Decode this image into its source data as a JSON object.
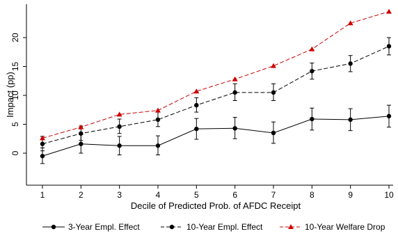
{
  "chart_data": {
    "type": "line",
    "title": "",
    "xlabel": "Decile of Predicted Prob. of AFDC Receipt",
    "ylabel": "Impact (pp)",
    "x": [
      1,
      2,
      3,
      4,
      5,
      6,
      7,
      8,
      9,
      10
    ],
    "xlim": [
      1,
      10
    ],
    "ylim": [
      -5,
      25
    ],
    "yticks": [
      0,
      5,
      10,
      15,
      20
    ],
    "grid": false,
    "legend_position": "bottom",
    "series": [
      {
        "name": "3-Year Empl. Effect",
        "color": "#000000",
        "line_style": "solid",
        "marker": "circle",
        "values": [
          -0.5,
          1.6,
          1.3,
          1.3,
          4.2,
          4.3,
          3.5,
          5.9,
          5.8,
          6.4
        ],
        "error_lower": [
          -1.8,
          0.0,
          -0.3,
          -0.3,
          2.4,
          2.5,
          1.7,
          4.0,
          3.9,
          4.5
        ],
        "error_upper": [
          0.9,
          3.2,
          2.9,
          3.0,
          6.0,
          6.2,
          5.4,
          7.8,
          7.7,
          8.3
        ]
      },
      {
        "name": "10-Year Empl. Effect",
        "color": "#000000",
        "line_style": "dashed",
        "marker": "circle",
        "values": [
          1.6,
          3.4,
          4.6,
          5.8,
          8.3,
          10.5,
          10.5,
          14.2,
          15.5,
          18.5
        ],
        "error_lower": [
          0.4,
          2.2,
          3.4,
          4.6,
          7.1,
          9.1,
          9.1,
          12.8,
          14.1,
          17.0
        ],
        "error_upper": [
          2.9,
          4.7,
          5.9,
          7.1,
          9.6,
          12.0,
          12.0,
          15.6,
          16.9,
          20.0
        ]
      },
      {
        "name": "10-Year Welfare Drop",
        "color": "#cc0000",
        "line_style": "dashed",
        "marker": "triangle",
        "values": [
          2.6,
          4.5,
          6.7,
          7.4,
          10.7,
          12.8,
          15.1,
          18.0,
          22.5,
          24.5
        ]
      }
    ]
  }
}
